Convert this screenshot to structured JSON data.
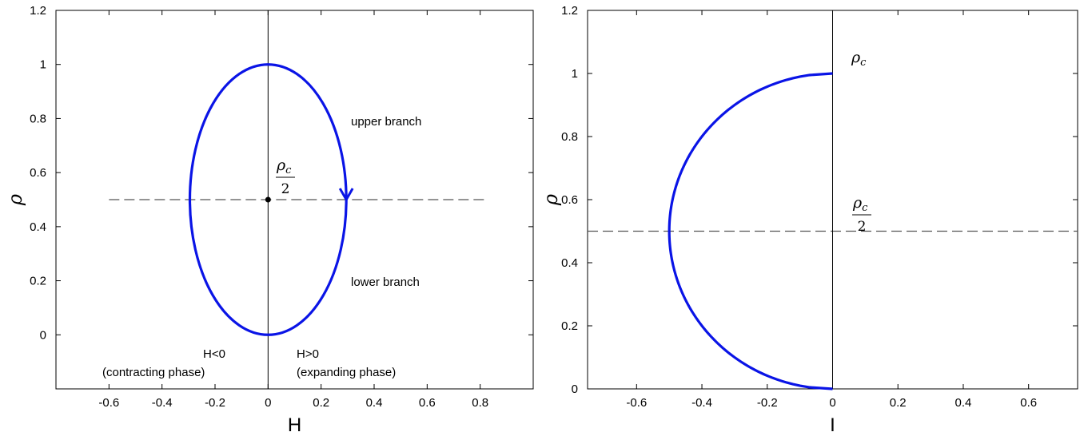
{
  "chart_data": [
    {
      "type": "line",
      "xlabel": "H",
      "ylabel": "ρ",
      "xlim": [
        -0.8,
        1.0
      ],
      "ylim": [
        -0.2,
        1.2
      ],
      "xticks": [
        "-0.6",
        "-0.4",
        "-0.2",
        "0",
        "0.2",
        "0.4",
        "0.6",
        "0.8"
      ],
      "yticks": [
        "0",
        "0.2",
        "0.4",
        "0.6",
        "0.8",
        "1",
        "1.2"
      ],
      "grid": false,
      "series": [
        {
          "kind": "ellipse",
          "color": "#0a14e6",
          "center": [
            0,
            0.5
          ],
          "radius_x": 0.295,
          "radius_y": 0.5,
          "direction_arrow_at": [
            0.295,
            0.5
          ]
        },
        {
          "kind": "hline",
          "y": 0.5,
          "x_range": [
            -0.6,
            0.82
          ],
          "style": "dashed",
          "color": "#555555"
        },
        {
          "kind": "vline",
          "x": 0,
          "style": "solid",
          "color": "#000000"
        },
        {
          "kind": "point",
          "x": 0,
          "y": 0.5,
          "color": "#000000"
        }
      ],
      "annotations": {
        "upper": "upper branch",
        "lower": "lower branch",
        "neg": "H<0",
        "pos": "H>0",
        "contract": "(contracting phase)",
        "expand": "(expanding phase)",
        "rho_sym": "ρ",
        "sub": "c",
        "den": "2"
      }
    },
    {
      "type": "line",
      "xlabel": "I",
      "ylabel": "ρ",
      "xlim": [
        -0.75,
        0.75
      ],
      "ylim": [
        0,
        1.2
      ],
      "xticks": [
        "-0.6",
        "-0.4",
        "-0.2",
        "0",
        "0.2",
        "0.4",
        "0.6"
      ],
      "yticks": [
        "0",
        "0.2",
        "0.4",
        "0.6",
        "0.8",
        "1",
        "1.2"
      ],
      "grid": false,
      "series": [
        {
          "kind": "curve",
          "equation": "I = -sqrt(rho*(1-rho))",
          "color": "#0a14e6",
          "rho_range": [
            0,
            1
          ]
        },
        {
          "kind": "hline",
          "y": 0.5,
          "style": "dashed",
          "color": "#555555"
        },
        {
          "kind": "vline",
          "x": 0,
          "style": "solid",
          "color": "#000000"
        }
      ],
      "annotations": {
        "rho_sym": "ρ",
        "sub": "c",
        "den": "2"
      }
    }
  ]
}
